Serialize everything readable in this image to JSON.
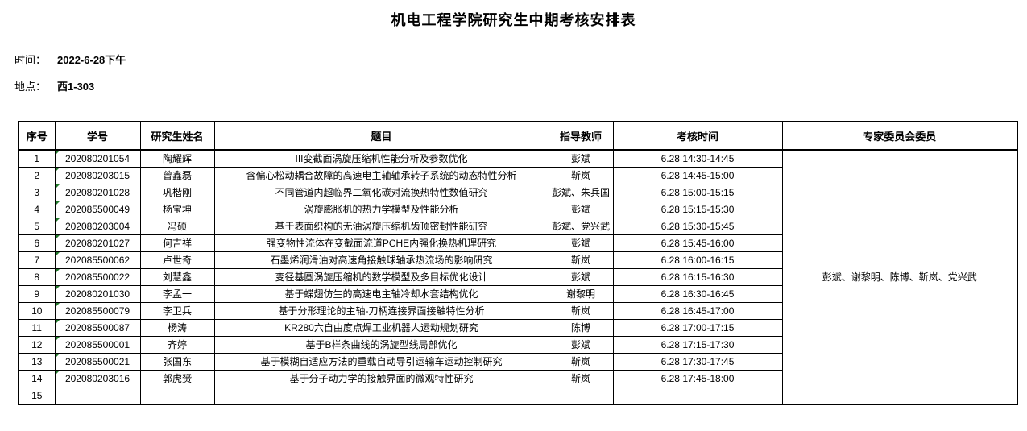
{
  "title": "机电工程学院研究生中期考核安排表",
  "meta": {
    "time_label": "时间：",
    "time_value": "2022-6-28下午",
    "place_label": "地点：",
    "place_value": "西1-303"
  },
  "colors": {
    "flag_green": "#217a2b",
    "border": "#000000",
    "background": "#ffffff"
  },
  "table": {
    "headers": {
      "no": "序号",
      "student_id": "学号",
      "student_name": "研究生姓名",
      "topic": "题目",
      "advisor": "指导教师",
      "exam_time": "考核时间",
      "committee": "专家委员会委员"
    },
    "committee_members": "彭斌、谢黎明、陈博、靳岚、党兴武",
    "rows": [
      {
        "no": "1",
        "student_id": "202080201054",
        "student_name": "陶耀辉",
        "topic": "III变截面涡旋压缩机性能分析及参数优化",
        "advisor": "彭斌",
        "exam_time": "6.28 14:30-14:45",
        "flag": true
      },
      {
        "no": "2",
        "student_id": "202080203015",
        "student_name": "曾鑫磊",
        "topic": "含偏心松动耦合故障的高速电主轴轴承转子系统的动态特性分析",
        "advisor": "靳岚",
        "exam_time": "6.28 14:45-15:00",
        "flag": true
      },
      {
        "no": "3",
        "student_id": "202080201028",
        "student_name": "巩楷刚",
        "topic": "不同管道内超临界二氧化碳对流换热特性数值研究",
        "advisor": "彭斌、朱兵国",
        "exam_time": "6.28 15:00-15:15",
        "flag": true
      },
      {
        "no": "4",
        "student_id": "202085500049",
        "student_name": "杨宝坤",
        "topic": "涡旋膨胀机的热力学模型及性能分析",
        "advisor": "彭斌",
        "exam_time": "6.28 15:15-15:30",
        "flag": true
      },
      {
        "no": "5",
        "student_id": "202080203004",
        "student_name": "冯硕",
        "topic": "基于表面织构的无油涡旋压缩机齿顶密封性能研究",
        "advisor": "彭斌、党兴武",
        "exam_time": "6.28 15:30-15:45",
        "flag": true
      },
      {
        "no": "6",
        "student_id": "202080201027",
        "student_name": "何吉祥",
        "topic": "强变物性流体在变截面流道PCHE内强化换热机理研究",
        "advisor": "彭斌",
        "exam_time": "6.28 15:45-16:00",
        "flag": true
      },
      {
        "no": "7",
        "student_id": "202085500062",
        "student_name": "卢世奇",
        "topic": "石墨烯润滑油对高速角接触球轴承热流场的影响研究",
        "advisor": "靳岚",
        "exam_time": "6.28 16:00-16:15",
        "flag": true
      },
      {
        "no": "8",
        "student_id": "202085500022",
        "student_name": "刘慧鑫",
        "topic": "变径基圆涡旋压缩机的数学模型及多目标优化设计",
        "advisor": "彭斌",
        "exam_time": "6.28 16:15-16:30",
        "flag": true
      },
      {
        "no": "9",
        "student_id": "202080201030",
        "student_name": "李孟一",
        "topic": "基于蝶翅仿生的高速电主轴冷却水套结构优化",
        "advisor": "谢黎明",
        "exam_time": "6.28 16:30-16:45",
        "flag": true
      },
      {
        "no": "10",
        "student_id": "202085500079",
        "student_name": "李卫兵",
        "topic": "基于分形理论的主轴-刀柄连接界面接触特性分析",
        "advisor": "靳岚",
        "exam_time": "6.28 16:45-17:00",
        "flag": true
      },
      {
        "no": "11",
        "student_id": "202085500087",
        "student_name": "杨涛",
        "topic": "KR280六自由度点焊工业机器人运动规划研究",
        "advisor": "陈博",
        "exam_time": "6.28 17:00-17:15",
        "flag": true
      },
      {
        "no": "12",
        "student_id": "202085500001",
        "student_name": "齐婷",
        "topic": "基于B样条曲线的涡旋型线局部优化",
        "advisor": "彭斌",
        "exam_time": "6.28 17:15-17:30",
        "flag": true
      },
      {
        "no": "13",
        "student_id": "202085500021",
        "student_name": "张国东",
        "topic": "基于模糊自适应方法的重载自动导引运输车运动控制研究",
        "advisor": "靳岚",
        "exam_time": "6.28 17:30-17:45",
        "flag": true
      },
      {
        "no": "14",
        "student_id": "202080203016",
        "student_name": "郭虎赟",
        "topic": "基于分子动力学的接触界面的微观特性研究",
        "advisor": "靳岚",
        "exam_time": "6.28 17:45-18:00",
        "flag": true
      },
      {
        "no": "15",
        "student_id": "",
        "student_name": "",
        "topic": "",
        "advisor": "",
        "exam_time": "",
        "flag": false
      }
    ]
  }
}
